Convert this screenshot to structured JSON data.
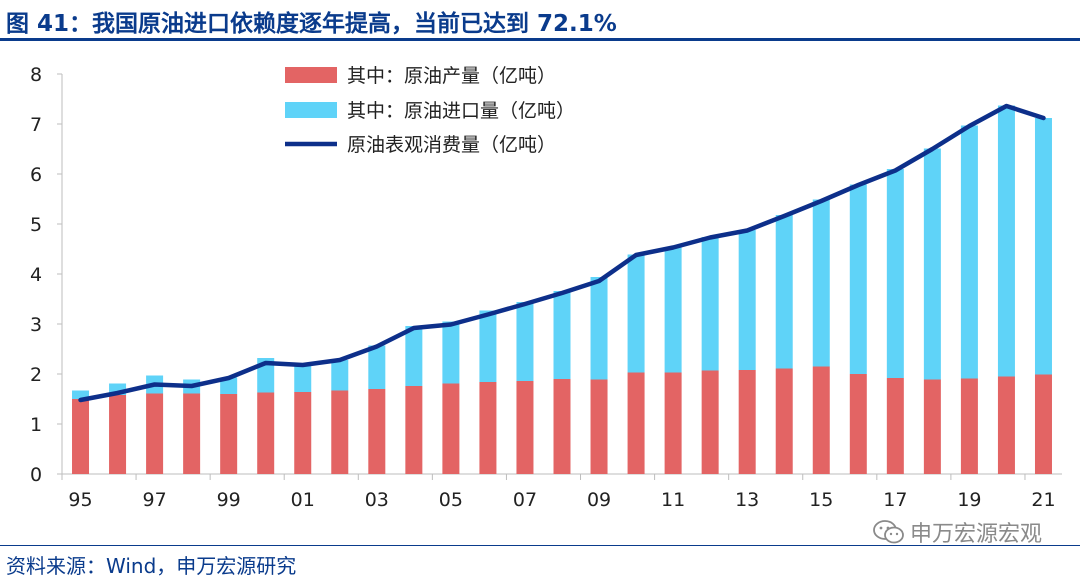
{
  "title": "图 41：我国原油进口依赖度逐年提高，当前已达到 72.1%",
  "source": "资料来源：Wind，申万宏源研究",
  "watermark": {
    "text": "申万宏源宏观",
    "icon": "wechat-icon"
  },
  "colors": {
    "production": "#e36464",
    "import": "#5fd3f8",
    "consumption": "#0d2f8a",
    "title": "#0a3b8c"
  },
  "chart_data": {
    "type": "bar",
    "stacked": true,
    "x": [
      "95",
      "96",
      "97",
      "98",
      "99",
      "00",
      "01",
      "02",
      "03",
      "04",
      "05",
      "06",
      "07",
      "08",
      "09",
      "10",
      "11",
      "12",
      "13",
      "14",
      "15",
      "16",
      "17",
      "18",
      "19",
      "20",
      "21"
    ],
    "x_tick_labels": [
      "95",
      "97",
      "99",
      "01",
      "03",
      "05",
      "07",
      "09",
      "11",
      "13",
      "15",
      "17",
      "19",
      "21"
    ],
    "series": [
      {
        "name": "其中：原油产量（亿吨）",
        "type": "bar",
        "values": [
          1.5,
          1.58,
          1.61,
          1.61,
          1.6,
          1.63,
          1.64,
          1.67,
          1.7,
          1.76,
          1.81,
          1.84,
          1.86,
          1.9,
          1.89,
          2.03,
          2.03,
          2.07,
          2.08,
          2.11,
          2.15,
          2.0,
          1.92,
          1.89,
          1.91,
          1.95,
          1.99
        ]
      },
      {
        "name": "其中：原油进口量（亿吨）",
        "type": "bar",
        "values": [
          0.17,
          0.23,
          0.36,
          0.28,
          0.33,
          0.69,
          0.54,
          0.61,
          0.87,
          1.2,
          1.24,
          1.43,
          1.58,
          1.76,
          2.05,
          2.36,
          2.5,
          2.67,
          2.8,
          3.07,
          3.34,
          3.79,
          4.18,
          4.62,
          5.06,
          5.42,
          5.13
        ]
      },
      {
        "name": "原油表观消费量（亿吨）",
        "type": "line",
        "values": [
          1.48,
          1.62,
          1.79,
          1.76,
          1.92,
          2.22,
          2.18,
          2.28,
          2.55,
          2.92,
          2.99,
          3.19,
          3.4,
          3.62,
          3.86,
          4.38,
          4.53,
          4.73,
          4.87,
          5.16,
          5.46,
          5.78,
          6.07,
          6.5,
          6.96,
          7.36,
          7.12
        ]
      }
    ],
    "ylim": [
      0,
      8
    ],
    "yticks": [
      "0",
      "1",
      "2",
      "3",
      "4",
      "5",
      "6",
      "7",
      "8"
    ],
    "legend": "top-left",
    "grid": false
  }
}
